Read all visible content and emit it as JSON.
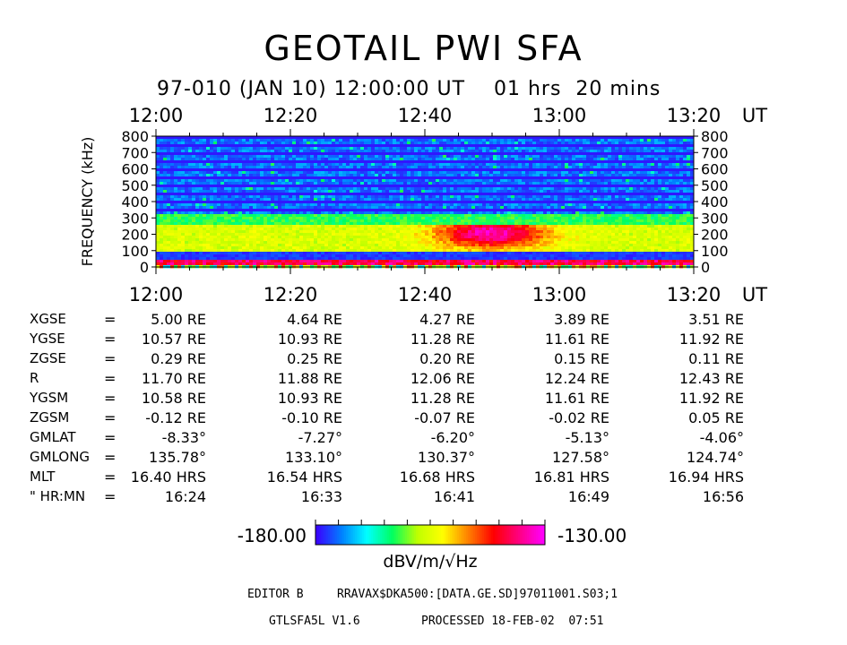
{
  "header": {
    "title": "GEOTAIL PWI SFA",
    "subtitle": "97-010 (JAN 10) 12:00:00 UT    01 hrs  20 mins"
  },
  "chart_data": {
    "type": "heatmap",
    "title": "GEOTAIL PWI SFA",
    "ylabel": "FREQUENCY (kHz)",
    "x_unit": "UT",
    "x_ticks": [
      "12:00",
      "12:20",
      "12:40",
      "13:00",
      "13:20"
    ],
    "y_ticks": [
      "0",
      "100",
      "200",
      "300",
      "400",
      "500",
      "600",
      "700",
      "800"
    ],
    "x_range": [
      "12:00",
      "13:20"
    ],
    "y_range": [
      0,
      800
    ],
    "colorbar": {
      "min_label": "-180.00",
      "max_label": "-130.00",
      "unit_label": "dBV/m/√Hz",
      "min": -180,
      "max": -130,
      "colors": [
        "#3a00ff",
        "#0080ff",
        "#00ffff",
        "#00ff60",
        "#c0ff00",
        "#ffff00",
        "#ff8000",
        "#ff0000",
        "#ff0080",
        "#ff00ff"
      ]
    }
  },
  "orbit_table": {
    "rows": [
      {
        "label": "XGSE",
        "eq": "=",
        "values": [
          "5.00 RE",
          "4.64 RE",
          "4.27 RE",
          "3.89 RE",
          "3.51 RE"
        ]
      },
      {
        "label": "YGSE",
        "eq": "=",
        "values": [
          "10.57 RE",
          "10.93 RE",
          "11.28 RE",
          "11.61 RE",
          "11.92 RE"
        ]
      },
      {
        "label": "ZGSE",
        "eq": "=",
        "values": [
          "0.29 RE",
          "0.25 RE",
          "0.20 RE",
          "0.15 RE",
          "0.11 RE"
        ]
      },
      {
        "label": "R",
        "eq": "=",
        "values": [
          "11.70 RE",
          "11.88 RE",
          "12.06 RE",
          "12.24 RE",
          "12.43 RE"
        ]
      },
      {
        "label": "YGSM",
        "eq": "=",
        "values": [
          "10.58 RE",
          "10.93 RE",
          "11.28 RE",
          "11.61 RE",
          "11.92 RE"
        ]
      },
      {
        "label": "ZGSM",
        "eq": "=",
        "values": [
          "-0.12 RE",
          "-0.10 RE",
          "-0.07 RE",
          "-0.02 RE",
          "0.05 RE"
        ]
      },
      {
        "label": "GMLAT",
        "eq": "=",
        "values": [
          "-8.33°",
          "-7.27°",
          "-6.20°",
          "-5.13°",
          "-4.06°"
        ]
      },
      {
        "label": "GMLONG",
        "eq": "=",
        "values": [
          "135.78°",
          "133.10°",
          "130.37°",
          "127.58°",
          "124.74°"
        ]
      },
      {
        "label": "MLT",
        "eq": "=",
        "values": [
          "16.40 HRS",
          "16.54 HRS",
          "16.68 HRS",
          "16.81 HRS",
          "16.94 HRS"
        ]
      },
      {
        "label": "\" HR:MN",
        "eq": "=",
        "values": [
          "16:24",
          "16:33",
          "16:41",
          "16:49",
          "16:56"
        ]
      }
    ]
  },
  "footer": {
    "editor_label": "EDITOR B",
    "file_path": "RRAVAX$DKA500:[DATA.GE.SD]97011001.S03;1",
    "program": "GTLSFA5L V1.6",
    "processed": "PROCESSED 18-FEB-02  07:51"
  }
}
